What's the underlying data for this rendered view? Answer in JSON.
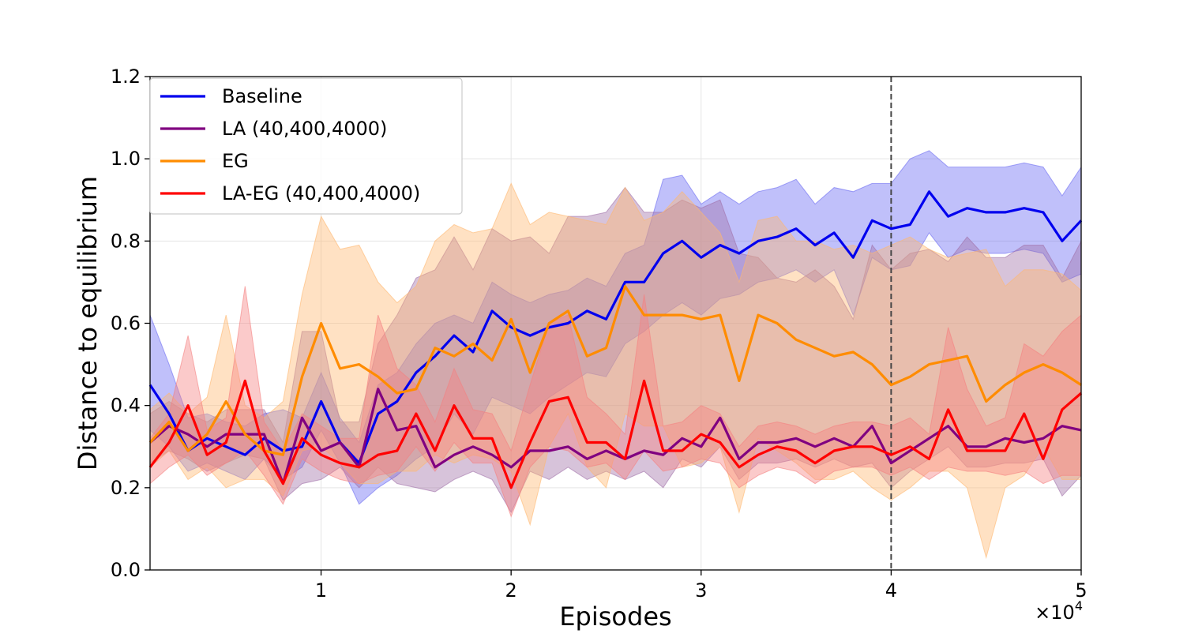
{
  "chart_data": {
    "type": "line",
    "title": "",
    "xlabel": "Episodes",
    "ylabel": "Distance to equilibrium",
    "x_multiplier_label": "×10",
    "x_multiplier_exp": "4",
    "xlim": [
      0.1,
      5.0
    ],
    "ylim": [
      0.0,
      1.2
    ],
    "x_ticks": [
      1,
      2,
      3,
      4,
      5
    ],
    "x_tick_labels": [
      "1",
      "2",
      "3",
      "4",
      "5"
    ],
    "y_ticks": [
      0.0,
      0.2,
      0.4,
      0.6,
      0.8,
      1.0,
      1.2
    ],
    "y_tick_labels": [
      "0.0",
      "0.2",
      "0.4",
      "0.6",
      "0.8",
      "1.0",
      "1.2"
    ],
    "grid": true,
    "legend_position": "top-left",
    "vline": {
      "x": 4.0,
      "style": "dashed",
      "color": "#444444"
    },
    "x": [
      0.1,
      0.2,
      0.3,
      0.4,
      0.5,
      0.6,
      0.7,
      0.8,
      0.9,
      1.0,
      1.1,
      1.2,
      1.3,
      1.4,
      1.5,
      1.6,
      1.7,
      1.8,
      1.9,
      2.0,
      2.1,
      2.2,
      2.3,
      2.4,
      2.5,
      2.6,
      2.7,
      2.8,
      2.9,
      3.0,
      3.1,
      3.2,
      3.3,
      3.4,
      3.5,
      3.6,
      3.7,
      3.8,
      3.9,
      4.0,
      4.1,
      4.2,
      4.3,
      4.4,
      4.5,
      4.6,
      4.7,
      4.8,
      4.9,
      5.0
    ],
    "series": [
      {
        "name": "Baseline",
        "color": "#0000ee",
        "band_color": "#6a6af2",
        "values": [
          0.45,
          0.38,
          0.29,
          0.32,
          0.3,
          0.28,
          0.32,
          0.29,
          0.3,
          0.41,
          0.31,
          0.26,
          0.38,
          0.41,
          0.48,
          0.52,
          0.57,
          0.53,
          0.63,
          0.59,
          0.57,
          0.59,
          0.6,
          0.63,
          0.61,
          0.7,
          0.7,
          0.77,
          0.8,
          0.76,
          0.79,
          0.77,
          0.8,
          0.81,
          0.83,
          0.79,
          0.82,
          0.76,
          0.85,
          0.83,
          0.84,
          0.92,
          0.86,
          0.88,
          0.87,
          0.87,
          0.88,
          0.87,
          0.8,
          0.85
        ],
        "upper": [
          0.62,
          0.5,
          0.37,
          0.38,
          0.36,
          0.35,
          0.38,
          0.39,
          0.37,
          0.48,
          0.37,
          0.31,
          0.45,
          0.48,
          0.55,
          0.6,
          0.62,
          0.6,
          0.7,
          0.67,
          0.65,
          0.67,
          0.68,
          0.71,
          0.69,
          0.77,
          0.79,
          0.95,
          0.96,
          0.89,
          0.92,
          0.89,
          0.92,
          0.93,
          0.95,
          0.89,
          0.93,
          0.92,
          0.94,
          0.94,
          1.0,
          1.02,
          0.98,
          0.98,
          0.98,
          0.98,
          0.99,
          0.98,
          0.91,
          0.98
        ],
        "lower": [
          0.34,
          0.3,
          0.24,
          0.26,
          0.24,
          0.22,
          0.27,
          0.22,
          0.25,
          0.34,
          0.26,
          0.16,
          0.2,
          0.23,
          0.27,
          0.3,
          0.38,
          0.33,
          0.42,
          0.4,
          0.38,
          0.42,
          0.45,
          0.48,
          0.47,
          0.55,
          0.58,
          0.62,
          0.65,
          0.62,
          0.66,
          0.67,
          0.7,
          0.71,
          0.73,
          0.7,
          0.73,
          0.62,
          0.76,
          0.73,
          0.74,
          0.82,
          0.76,
          0.78,
          0.77,
          0.77,
          0.78,
          0.77,
          0.7,
          0.72
        ]
      },
      {
        "name": "LA (40,400,4000)",
        "color": "#800080",
        "band_color": "#a070a8",
        "values": [
          0.31,
          0.35,
          0.33,
          0.3,
          0.33,
          0.33,
          0.33,
          0.21,
          0.37,
          0.29,
          0.31,
          0.25,
          0.44,
          0.34,
          0.35,
          0.25,
          0.28,
          0.3,
          0.28,
          0.25,
          0.29,
          0.29,
          0.3,
          0.27,
          0.29,
          0.27,
          0.29,
          0.28,
          0.32,
          0.3,
          0.37,
          0.27,
          0.31,
          0.31,
          0.32,
          0.3,
          0.32,
          0.3,
          0.35,
          0.26,
          0.29,
          0.32,
          0.35,
          0.3,
          0.3,
          0.32,
          0.31,
          0.32,
          0.35,
          0.34
        ],
        "upper": [
          0.38,
          0.41,
          0.38,
          0.36,
          0.39,
          0.39,
          0.39,
          0.31,
          0.58,
          0.58,
          0.36,
          0.36,
          0.55,
          0.62,
          0.71,
          0.73,
          0.81,
          0.73,
          0.83,
          0.8,
          0.81,
          0.77,
          0.86,
          0.86,
          0.87,
          0.93,
          0.87,
          0.87,
          0.9,
          0.88,
          0.9,
          0.77,
          0.76,
          0.71,
          0.7,
          0.73,
          0.69,
          0.61,
          0.79,
          0.73,
          0.77,
          0.78,
          0.75,
          0.81,
          0.76,
          0.76,
          0.79,
          0.79,
          0.71,
          0.8
        ],
        "lower": [
          0.26,
          0.29,
          0.27,
          0.24,
          0.26,
          0.28,
          0.27,
          0.17,
          0.21,
          0.22,
          0.25,
          0.2,
          0.25,
          0.21,
          0.2,
          0.19,
          0.22,
          0.24,
          0.22,
          0.14,
          0.24,
          0.22,
          0.25,
          0.22,
          0.24,
          0.22,
          0.24,
          0.2,
          0.27,
          0.25,
          0.3,
          0.22,
          0.26,
          0.26,
          0.27,
          0.25,
          0.27,
          0.25,
          0.26,
          0.2,
          0.24,
          0.27,
          0.3,
          0.25,
          0.25,
          0.26,
          0.26,
          0.27,
          0.18,
          0.23
        ]
      },
      {
        "name": "EG",
        "color": "#ff8c00",
        "band_color": "#ffb870",
        "values": [
          0.31,
          0.36,
          0.29,
          0.33,
          0.41,
          0.33,
          0.29,
          0.28,
          0.47,
          0.6,
          0.49,
          0.5,
          0.47,
          0.43,
          0.44,
          0.54,
          0.52,
          0.55,
          0.51,
          0.61,
          0.48,
          0.6,
          0.63,
          0.52,
          0.54,
          0.69,
          0.62,
          0.62,
          0.62,
          0.61,
          0.62,
          0.46,
          0.62,
          0.6,
          0.56,
          0.54,
          0.52,
          0.53,
          0.5,
          0.45,
          0.47,
          0.5,
          0.51,
          0.52,
          0.41,
          0.45,
          0.48,
          0.5,
          0.48,
          0.45
        ],
        "upper": [
          0.39,
          0.43,
          0.38,
          0.42,
          0.62,
          0.4,
          0.37,
          0.41,
          0.67,
          0.86,
          0.78,
          0.79,
          0.7,
          0.65,
          0.69,
          0.8,
          0.84,
          0.82,
          0.83,
          0.94,
          0.84,
          0.87,
          0.86,
          0.85,
          0.84,
          0.93,
          0.85,
          0.87,
          0.92,
          0.87,
          0.82,
          0.7,
          0.85,
          0.86,
          0.8,
          0.8,
          0.78,
          0.79,
          0.77,
          0.79,
          0.81,
          0.78,
          0.76,
          0.77,
          0.78,
          0.69,
          0.73,
          0.73,
          0.72,
          0.68
        ],
        "lower": [
          0.25,
          0.29,
          0.22,
          0.25,
          0.2,
          0.22,
          0.22,
          0.18,
          0.29,
          0.3,
          0.26,
          0.21,
          0.21,
          0.24,
          0.24,
          0.28,
          0.26,
          0.28,
          0.27,
          0.24,
          0.11,
          0.3,
          0.38,
          0.25,
          0.2,
          0.38,
          0.35,
          0.35,
          0.25,
          0.26,
          0.3,
          0.14,
          0.32,
          0.29,
          0.26,
          0.22,
          0.22,
          0.24,
          0.2,
          0.17,
          0.2,
          0.24,
          0.24,
          0.2,
          0.03,
          0.2,
          0.23,
          0.3,
          0.22,
          0.22
        ]
      },
      {
        "name": "LA-EG (40,400,4000)",
        "color": "#ff0000",
        "band_color": "#f58080",
        "values": [
          0.25,
          0.31,
          0.4,
          0.28,
          0.31,
          0.46,
          0.29,
          0.21,
          0.32,
          0.28,
          0.26,
          0.25,
          0.28,
          0.29,
          0.38,
          0.29,
          0.4,
          0.32,
          0.32,
          0.2,
          0.31,
          0.41,
          0.42,
          0.31,
          0.31,
          0.27,
          0.46,
          0.29,
          0.29,
          0.33,
          0.31,
          0.25,
          0.28,
          0.3,
          0.29,
          0.26,
          0.29,
          0.3,
          0.3,
          0.28,
          0.3,
          0.27,
          0.39,
          0.29,
          0.29,
          0.29,
          0.38,
          0.27,
          0.39,
          0.43
        ],
        "upper": [
          0.32,
          0.38,
          0.57,
          0.34,
          0.37,
          0.69,
          0.36,
          0.29,
          0.38,
          0.35,
          0.32,
          0.32,
          0.62,
          0.49,
          0.45,
          0.36,
          0.49,
          0.39,
          0.38,
          0.29,
          0.45,
          0.6,
          0.62,
          0.42,
          0.38,
          0.33,
          0.67,
          0.35,
          0.36,
          0.4,
          0.38,
          0.3,
          0.35,
          0.36,
          0.35,
          0.33,
          0.35,
          0.36,
          0.36,
          0.35,
          0.37,
          0.33,
          0.59,
          0.44,
          0.35,
          0.37,
          0.55,
          0.52,
          0.58,
          0.62
        ],
        "lower": [
          0.21,
          0.25,
          0.28,
          0.23,
          0.26,
          0.29,
          0.23,
          0.16,
          0.27,
          0.24,
          0.22,
          0.21,
          0.23,
          0.24,
          0.3,
          0.24,
          0.31,
          0.26,
          0.26,
          0.13,
          0.25,
          0.3,
          0.29,
          0.25,
          0.26,
          0.22,
          0.29,
          0.24,
          0.25,
          0.27,
          0.26,
          0.2,
          0.23,
          0.25,
          0.24,
          0.21,
          0.24,
          0.25,
          0.25,
          0.23,
          0.25,
          0.22,
          0.25,
          0.24,
          0.24,
          0.23,
          0.24,
          0.21,
          0.23,
          0.23
        ]
      }
    ]
  }
}
